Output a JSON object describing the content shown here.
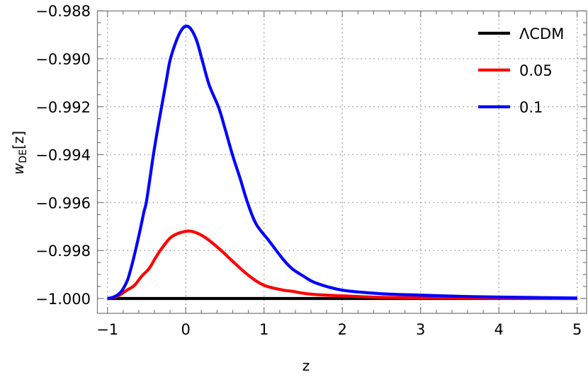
{
  "chart_data": {
    "type": "line",
    "title": "",
    "xlabel": "z",
    "ylabel": "w_DE[z]",
    "ylabel_main": "w",
    "ylabel_sub": "DE",
    "ylabel_suffix": "[z]",
    "xlim": [
      -1.13,
      5.12
    ],
    "ylim": [
      -1.00062,
      -0.988
    ],
    "x_ticks": [
      -1,
      0,
      1,
      2,
      3,
      4,
      5
    ],
    "x_tick_labels": [
      "−1",
      "0",
      "1",
      "2",
      "3",
      "4",
      "5"
    ],
    "y_ticks": [
      -1.0,
      -0.998,
      -0.996,
      -0.994,
      -0.992,
      -0.99,
      -0.988
    ],
    "y_tick_labels": [
      "−1.000",
      "−0.998",
      "−0.996",
      "−0.994",
      "−0.992",
      "−0.990",
      "−0.988"
    ],
    "x_minor_step": 0.2,
    "y_minor_step": 0.0005,
    "grid": true,
    "grid_style": "dotted",
    "legend_position": "top-right",
    "series": [
      {
        "name": "ΛCDM",
        "color": "#000000",
        "x": [
          -1,
          5
        ],
        "y": [
          -1.0,
          -1.0
        ]
      },
      {
        "name": "0.05",
        "color": "#ff0000",
        "x": [
          -1.0,
          -0.9,
          -0.835,
          -0.75,
          -0.655,
          -0.56,
          -0.47,
          -0.4,
          -0.32,
          -0.2,
          -0.1,
          0.02,
          0.1,
          0.2,
          0.3,
          0.46,
          0.6,
          0.8,
          1.0,
          1.245,
          1.36,
          1.6,
          2.0,
          2.5,
          3.0,
          4.0,
          5.0
        ],
        "y": [
          -1.0,
          -0.99994,
          -0.99984,
          -0.99965,
          -0.99945,
          -0.99906,
          -0.99876,
          -0.99838,
          -0.99797,
          -0.99748,
          -0.99729,
          -0.99719,
          -0.99722,
          -0.99736,
          -0.99758,
          -0.99802,
          -0.99845,
          -0.99903,
          -0.99945,
          -0.99965,
          -0.9997,
          -0.99982,
          -0.99989,
          -0.99995,
          -0.99997,
          -0.99999,
          -1.0
        ]
      },
      {
        "name": "0.1",
        "color": "#0000ff",
        "x": [
          -1.0,
          -0.93,
          -0.865,
          -0.81,
          -0.746,
          -0.7,
          -0.64,
          -0.58,
          -0.535,
          -0.505,
          -0.46,
          -0.415,
          -0.36,
          -0.31,
          -0.25,
          -0.2,
          -0.12,
          -0.05,
          0.01,
          0.07,
          0.14,
          0.21,
          0.3,
          0.42,
          0.5,
          0.6,
          0.7,
          0.79,
          0.9,
          1.06,
          1.245,
          1.36,
          1.5,
          1.66,
          2.0,
          2.5,
          3.0,
          3.5,
          4.0,
          5.0
        ],
        "y": [
          -1.0,
          -0.99995,
          -0.99984,
          -0.99965,
          -0.99925,
          -0.99875,
          -0.99797,
          -0.9971,
          -0.9964,
          -0.99601,
          -0.99505,
          -0.99404,
          -0.99295,
          -0.99203,
          -0.99095,
          -0.99006,
          -0.98925,
          -0.98878,
          -0.98864,
          -0.98878,
          -0.98925,
          -0.99006,
          -0.9911,
          -0.99203,
          -0.9929,
          -0.99404,
          -0.99505,
          -0.99601,
          -0.9969,
          -0.99758,
          -0.99837,
          -0.99876,
          -0.99906,
          -0.99935,
          -0.99965,
          -0.9998,
          -0.99986,
          -0.99991,
          -0.99994,
          -0.99998
        ]
      }
    ]
  },
  "legend": {
    "items": [
      {
        "label": "ΛCDM",
        "color": "#000000"
      },
      {
        "label": "0.05",
        "color": "#ff0000"
      },
      {
        "label": "0.1",
        "color": "#0000ff"
      }
    ]
  },
  "colors": {
    "frame": "#7f7f7f",
    "grid": "#a6a6a6"
  }
}
